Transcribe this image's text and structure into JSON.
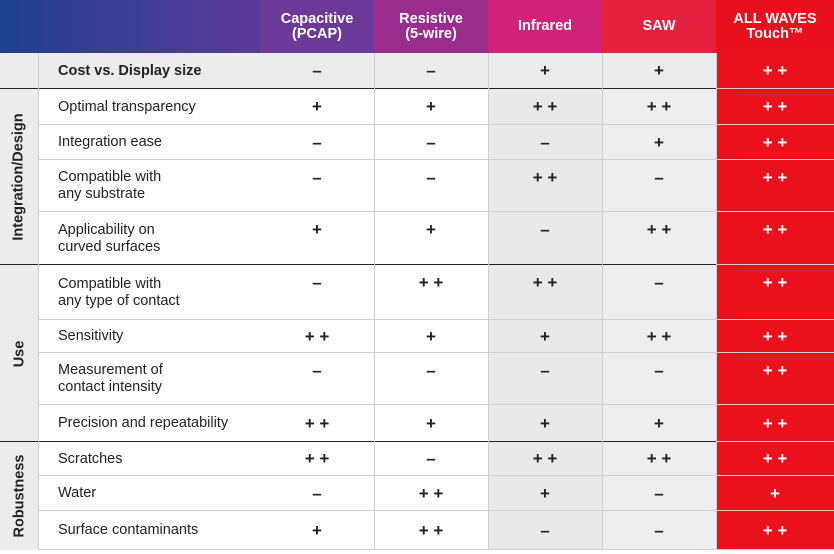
{
  "header": {
    "columns": [
      "Capacitive\n(PCAP)",
      "Resistive\n(5-wire)",
      "Infrared",
      "SAW",
      "ALL WAVES\nTouch™"
    ]
  },
  "table": {
    "summary_row": {
      "feature": "Cost vs. Display size",
      "cells": [
        "–",
        "–",
        "+",
        "+",
        "+ +"
      ]
    },
    "groups": [
      {
        "label": "Integration/Design",
        "rows": [
          {
            "feature": "Optimal transparency",
            "cells": [
              "+",
              "+",
              "+ +",
              "+ +",
              "+ +"
            ]
          },
          {
            "feature": "Integration ease",
            "cells": [
              "–",
              "–",
              "–",
              "+",
              "+ +"
            ]
          },
          {
            "feature": "Compatible with\nany substrate",
            "cells": [
              "–",
              "–",
              "+ +",
              "–",
              "+ +"
            ]
          },
          {
            "feature": "Applicability on\ncurved surfaces",
            "cells": [
              "+",
              "+",
              "–",
              "+ +",
              "+ +"
            ]
          }
        ]
      },
      {
        "label": "Use",
        "rows": [
          {
            "feature": "Compatible with\nany type of contact",
            "cells": [
              "–",
              "+ +",
              "+ +",
              "–",
              "+ +"
            ]
          },
          {
            "feature": "Sensitivity",
            "cells": [
              "+ +",
              "+",
              "+",
              "+ +",
              "+ +"
            ]
          },
          {
            "feature": "Measurement of\ncontact intensity",
            "cells": [
              "–",
              "–",
              "–",
              "–",
              "+ +"
            ]
          },
          {
            "feature": "Precision and repeatability",
            "cells": [
              "+ +",
              "+",
              "+",
              "+",
              "+ +"
            ]
          }
        ]
      },
      {
        "label": "Robustness",
        "rows": [
          {
            "feature": "Scratches",
            "cells": [
              "+ +",
              "–",
              "+ +",
              "+ +",
              "+ +"
            ]
          },
          {
            "feature": "Water",
            "cells": [
              "–",
              "+ +",
              "+",
              "–",
              "+"
            ]
          },
          {
            "feature": "Surface contaminants",
            "cells": [
              "+",
              "+ +",
              "–",
              "–",
              "+ +"
            ]
          }
        ]
      }
    ]
  }
}
